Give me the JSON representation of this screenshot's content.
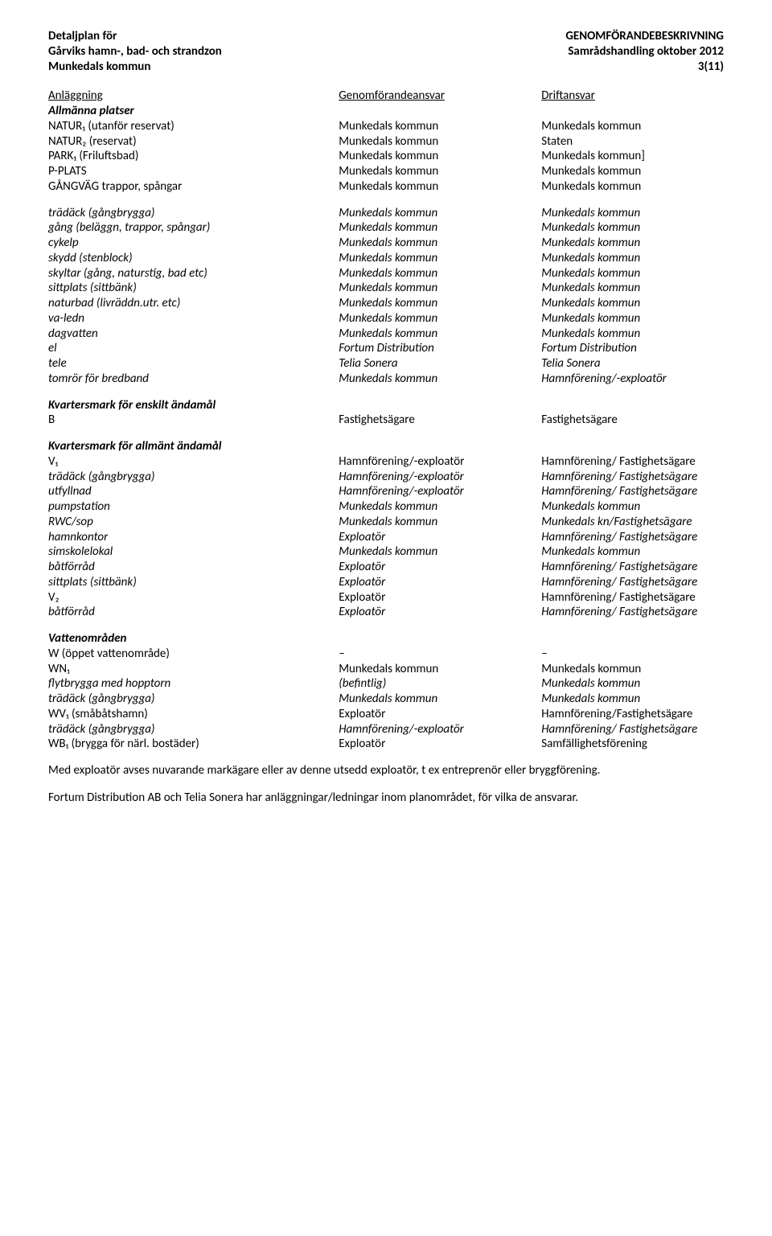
{
  "header": {
    "left1": "Detaljplan för",
    "left2": "Gårviks hamn-, bad- och strandzon",
    "left3": "Munkedals kommun",
    "right1": "GENOMFÖRANDEBESKRIVNING",
    "right2": "Samrådshandling oktober 2012",
    "right3": "3(11)"
  },
  "th": {
    "c1": "Anläggning",
    "c2": "Genomförandeansvar",
    "c3": "Driftansvar"
  },
  "s1": {
    "title": "Allmänna platser",
    "rows": [
      {
        "c1": "NATUR₁ (utanför reservat)",
        "c2": "Munkedals kommun",
        "c3": "Munkedals kommun"
      },
      {
        "c1": "NATUR₂ (reservat)",
        "c2": "Munkedals kommun",
        "c3": "Staten"
      },
      {
        "c1": "PARK₁ (Friluftsbad)",
        "c2": "Munkedals kommun",
        "c3": "Munkedals kommun]"
      },
      {
        "c1": "P-PLATS",
        "c2": "Munkedals kommun",
        "c3": "Munkedals kommun"
      },
      {
        "c1": "GÅNGVÄG trappor, spångar",
        "c2": "Munkedals kommun",
        "c3": "Munkedals kommun"
      }
    ],
    "sub": [
      {
        "c1": "trädäck (gångbrygga)",
        "c2": "Munkedals kommun",
        "c3": "Munkedals kommun"
      },
      {
        "c1": "gång (beläggn, trappor, spångar)",
        "c2": "Munkedals kommun",
        "c3": "Munkedals kommun"
      },
      {
        "c1": "cykelp",
        "c2": "Munkedals kommun",
        "c3": "Munkedals kommun"
      },
      {
        "c1": "skydd (stenblock)",
        "c2": "Munkedals kommun",
        "c3": "Munkedals kommun"
      },
      {
        "c1": "skyltar (gång, naturstig, bad etc)",
        "c2": "Munkedals kommun",
        "c3": "Munkedals kommun"
      },
      {
        "c1": "sittplats (sittbänk)",
        "c2": "Munkedals kommun",
        "c3": "Munkedals kommun"
      },
      {
        "c1": "naturbad (livräddn.utr. etc)",
        "c2": "Munkedals kommun",
        "c3": "Munkedals kommun"
      },
      {
        "c1": "va-ledn",
        "c2": "Munkedals kommun",
        "c3": "Munkedals kommun"
      },
      {
        "c1": "dagvatten",
        "c2": "Munkedals kommun",
        "c3": "Munkedals kommun"
      },
      {
        "c1": "el",
        "c2": "Fortum Distribution",
        "c3": "Fortum Distribution"
      },
      {
        "c1": "tele",
        "c2": "Telia Sonera",
        "c3": "Telia Sonera"
      },
      {
        "c1": "tomrör för bredband",
        "c2": "Munkedals kommun",
        "c3": "Hamnförening/-exploatör"
      }
    ]
  },
  "s2": {
    "title": "Kvartersmark för enskilt ändamål",
    "rows": [
      {
        "c1": "B",
        "c2": "Fastighetsägare",
        "c3": "Fastighetsägare"
      }
    ]
  },
  "s3": {
    "title": "Kvartersmark för allmänt ändamål",
    "rows": [
      {
        "c1": "V₁",
        "c2": "Hamnförening/-exploatör",
        "c3": "Hamnförening/ Fastighetsägare",
        "indent": false,
        "it": false
      },
      {
        "c1": "trädäck (gångbrygga)",
        "c2": "Hamnförening/-exploatör",
        "c3": "Hamnförening/ Fastighetsägare",
        "indent": true,
        "it": true
      },
      {
        "c1": "utfyllnad",
        "c2": "Hamnförening/-exploatör",
        "c3": "Hamnförening/ Fastighetsägare",
        "indent": true,
        "it": true
      },
      {
        "c1": "pumpstation",
        "c2": "Munkedals kommun",
        "c3": "Munkedals kommun",
        "indent": true,
        "it": true
      },
      {
        "c1": "RWC/sop",
        "c2": "Munkedals kommun",
        "c3": "Munkedals kn/Fastighetsägare",
        "indent": true,
        "it": true
      },
      {
        "c1": "hamnkontor",
        "c2": "Exploatör",
        "c3": "Hamnförening/ Fastighetsägare",
        "indent": true,
        "it": true
      },
      {
        "c1": "simskolelokal",
        "c2": "Munkedals kommun",
        "c3": "Munkedals kommun",
        "indent": true,
        "it": true
      },
      {
        "c1": "båtförråd",
        "c2": "Exploatör",
        "c3": "Hamnförening/ Fastighetsägare",
        "indent": true,
        "it": true
      },
      {
        "c1": "sittplats (sittbänk)",
        "c2": "Exploatör",
        "c3": "Hamnförening/ Fastighetsägare",
        "indent": true,
        "it": true
      },
      {
        "c1": "V₂",
        "c2": "Exploatör",
        "c3": "Hamnförening/ Fastighetsägare",
        "indent": false,
        "it": false
      },
      {
        "c1": "båtförråd",
        "c2": "Exploatör",
        "c3": "Hamnförening/ Fastighetsägare",
        "indent": true,
        "it": true
      }
    ]
  },
  "s4": {
    "title": "Vattenområden",
    "rows": [
      {
        "c1": "W (öppet vattenområde)",
        "c2": "–",
        "c3": "–",
        "indent": false,
        "it": false
      },
      {
        "c1": "WN₁",
        "c2": "Munkedals kommun",
        "c3": "Munkedals kommun",
        "indent": false,
        "it": false
      },
      {
        "c1": "flytbrygga med hopptorn",
        "c2": "(befintlig)",
        "c3": "Munkedals kommun",
        "indent": true,
        "it": true
      },
      {
        "c1": "trädäck (gångbrygga)",
        "c2": "Munkedals kommun",
        "c3": "Munkedals kommun",
        "indent": true,
        "it": true
      },
      {
        "c1": "WV₁ (småbåtshamn)",
        "c2": "Exploatör",
        "c3": "Hamnförening/Fastighetsägare",
        "indent": false,
        "it": false
      },
      {
        "c1": "trädäck (gångbrygga)",
        "c2": "Hamnförening/-exploatör",
        "c3": "Hamnförening/ Fastighetsägare",
        "indent": true,
        "it": true
      },
      {
        "c1": "WB₁ (brygga för närl. bostäder)",
        "c2": "Exploatör",
        "c3": "Samfällighetsförening",
        "indent": false,
        "it": false
      }
    ]
  },
  "para1": "Med exploatör avses nuvarande markägare eller av denne utsedd exploatör, t ex entreprenör eller bryggförening.",
  "para2": "Fortum Distribution AB och Telia Sonera har anläggningar/ledningar inom planområdet, för vilka de ansvarar."
}
